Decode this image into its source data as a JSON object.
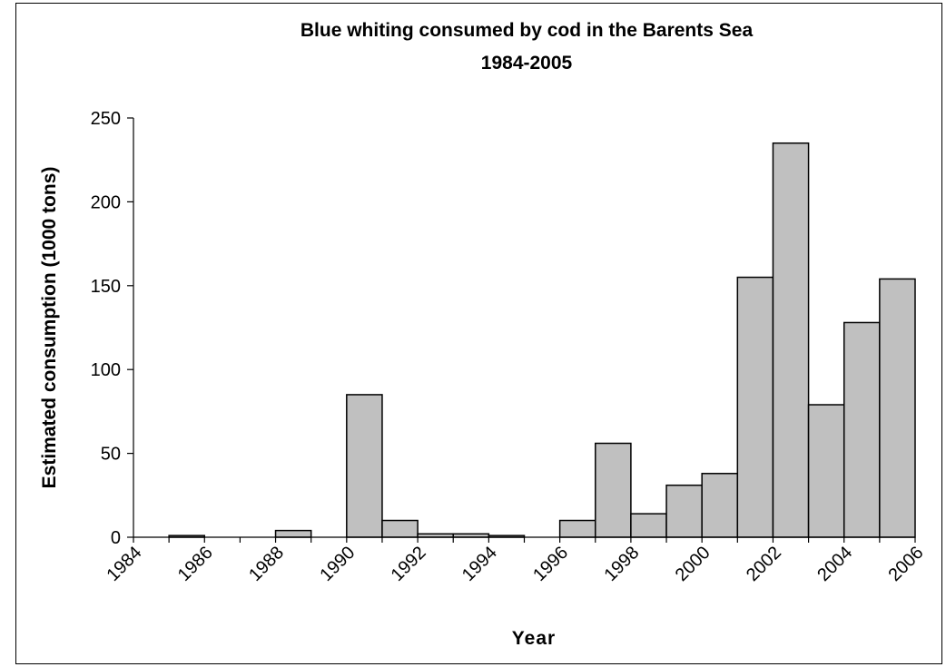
{
  "chart_data": {
    "type": "bar",
    "title": "Blue whiting consumed by cod in the Barents Sea",
    "subtitle": "1984-2005",
    "xlabel": "Year",
    "ylabel": "Estimated consumption (1000 tons)",
    "x_ticks": [
      "1984",
      "1986",
      "1988",
      "1990",
      "1992",
      "1994",
      "1996",
      "1998",
      "2000",
      "2002",
      "2004",
      "2006"
    ],
    "y_ticks": [
      "0",
      "50",
      "100",
      "150",
      "200",
      "250"
    ],
    "xlim": [
      1984,
      2006
    ],
    "ylim": [
      0,
      250
    ],
    "categories": [
      1984,
      1985,
      1986,
      1987,
      1988,
      1989,
      1990,
      1991,
      1992,
      1993,
      1994,
      1995,
      1996,
      1997,
      1998,
      1999,
      2000,
      2001,
      2002,
      2003,
      2004,
      2005
    ],
    "values": [
      0,
      1,
      0,
      0,
      4,
      0,
      85,
      10,
      2,
      2,
      1,
      0,
      10,
      56,
      14,
      31,
      38,
      155,
      235,
      79,
      128,
      154
    ],
    "bar_color": "#c0c0c0",
    "grid": false,
    "legend": "none"
  }
}
